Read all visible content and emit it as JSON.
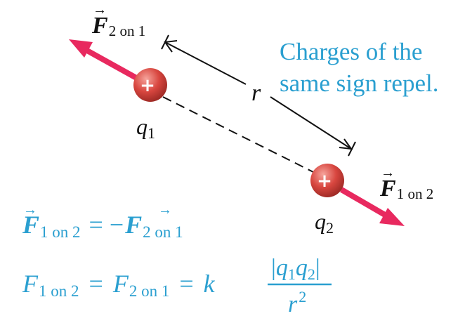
{
  "colors": {
    "force_arrow": "#e8295f",
    "charge_fill": "#d8463f",
    "charge_sign": "#ffffff",
    "caption": "#2a9fd0",
    "ink": "#111111"
  },
  "forces": {
    "f21": {
      "symbol": "F",
      "vector_mark": "→",
      "subscript": "2 on 1"
    },
    "f12": {
      "symbol": "F",
      "vector_mark": "→",
      "subscript": "1 on 2"
    }
  },
  "charges": {
    "q1": {
      "sign": "+",
      "symbol": "q",
      "index": "1"
    },
    "q2": {
      "sign": "+",
      "symbol": "q",
      "index": "2"
    }
  },
  "separation": {
    "label": "r"
  },
  "caption": {
    "line1": "Charges of the",
    "line2": "same sign repel."
  },
  "equation1": {
    "lhs": {
      "symbol": "F",
      "subscript": "1 on 2"
    },
    "operator": "= −",
    "rhs": {
      "symbol": "F",
      "subscript": "2 on 1"
    }
  },
  "equation2": {
    "lhs": {
      "symbol": "F",
      "subscript": "1 on 2"
    },
    "eq1": "=",
    "mid": {
      "symbol": "F",
      "subscript": "2 on 1"
    },
    "eq2": "=",
    "constant": "k",
    "numerator": {
      "bar": "|",
      "q_a": "q",
      "a_index": "1",
      "q_b": "q",
      "b_index": "2"
    },
    "denominator": {
      "r": "r",
      "power": "2"
    }
  }
}
